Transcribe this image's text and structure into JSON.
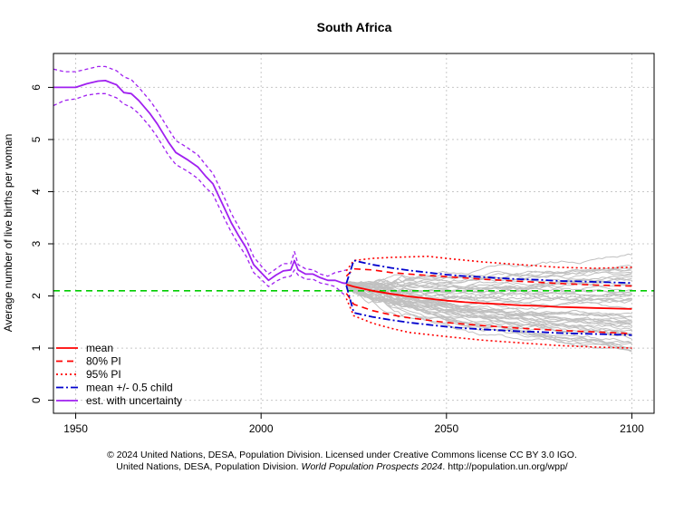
{
  "chart_data": {
    "type": "line",
    "title": "South Africa",
    "xlabel": "",
    "ylabel": "Average number of live births per woman",
    "xlim": [
      1944,
      2106
    ],
    "ylim": [
      -0.25,
      6.65
    ],
    "x_ticks": [
      1950,
      2000,
      2050,
      2100
    ],
    "y_ticks": [
      0,
      1,
      2,
      3,
      4,
      5,
      6
    ],
    "grid": true,
    "legend_position": "bottom-left",
    "legend": [
      {
        "label": "mean",
        "color": "#ff0000",
        "dash": "solid"
      },
      {
        "label": "80% PI",
        "color": "#ff0000",
        "dash": "dashed"
      },
      {
        "label": "95% PI",
        "color": "#ff0000",
        "dash": "dotted"
      },
      {
        "label": "mean +/- 0.5 child",
        "color": "#0000cd",
        "dash": "dotdash"
      },
      {
        "label": "est. with uncertainty",
        "color": "#a020f0",
        "dash": "solid"
      }
    ],
    "replacement_level": {
      "y": 2.1,
      "color": "#00cd00",
      "dash": "dashed"
    },
    "series": [
      {
        "key": "estimate",
        "x": [
          1944,
          1947,
          1950,
          1953,
          1956,
          1958,
          1961,
          1963,
          1965,
          1967,
          1970,
          1972,
          1975,
          1977,
          1980,
          1983,
          1985,
          1987,
          1990,
          1992,
          1994,
          1996,
          1998,
          2000,
          2002,
          2004,
          2006,
          2008,
          2009,
          2010,
          2012,
          2014,
          2016,
          2018,
          2020,
          2022,
          2023
        ],
        "y": [
          6.0,
          6.0,
          6.0,
          6.07,
          6.12,
          6.13,
          6.05,
          5.9,
          5.88,
          5.75,
          5.5,
          5.3,
          4.95,
          4.75,
          4.62,
          4.47,
          4.3,
          4.15,
          3.7,
          3.4,
          3.15,
          2.92,
          2.6,
          2.45,
          2.3,
          2.4,
          2.48,
          2.5,
          2.68,
          2.5,
          2.42,
          2.42,
          2.35,
          2.3,
          2.3,
          2.25,
          2.24
        ],
        "color": "#a020f0"
      },
      {
        "key": "estimate_upper",
        "x": [
          1944,
          1947,
          1950,
          1953,
          1956,
          1958,
          1961,
          1963,
          1965,
          1967,
          1970,
          1972,
          1975,
          1977,
          1980,
          1983,
          1985,
          1987,
          1990,
          1992,
          1994,
          1996,
          1998,
          2000,
          2002,
          2004,
          2006,
          2008,
          2009,
          2010,
          2012,
          2014,
          2016,
          2018,
          2020,
          2022,
          2023
        ],
        "y": [
          6.35,
          6.3,
          6.3,
          6.35,
          6.4,
          6.4,
          6.32,
          6.2,
          6.15,
          6.0,
          5.75,
          5.55,
          5.2,
          4.98,
          4.85,
          4.7,
          4.52,
          4.35,
          3.9,
          3.58,
          3.32,
          3.08,
          2.75,
          2.58,
          2.42,
          2.52,
          2.62,
          2.62,
          2.85,
          2.6,
          2.52,
          2.5,
          2.42,
          2.38,
          2.45,
          2.48,
          2.5
        ],
        "color": "#a020f0"
      },
      {
        "key": "estimate_lower",
        "x": [
          1944,
          1947,
          1950,
          1953,
          1956,
          1958,
          1961,
          1963,
          1965,
          1967,
          1970,
          1972,
          1975,
          1977,
          1980,
          1983,
          1985,
          1987,
          1990,
          1992,
          1994,
          1996,
          1998,
          2000,
          2002,
          2004,
          2006,
          2008,
          2009,
          2010,
          2012,
          2014,
          2016,
          2018,
          2020,
          2022,
          2023
        ],
        "y": [
          5.65,
          5.75,
          5.78,
          5.85,
          5.88,
          5.88,
          5.8,
          5.68,
          5.62,
          5.5,
          5.25,
          5.05,
          4.7,
          4.52,
          4.4,
          4.25,
          4.08,
          3.95,
          3.5,
          3.22,
          2.98,
          2.76,
          2.45,
          2.32,
          2.18,
          2.28,
          2.35,
          2.38,
          2.5,
          2.4,
          2.32,
          2.32,
          2.25,
          2.22,
          2.18,
          2.05,
          2.0
        ]
      },
      {
        "key": "mean",
        "name": "mean",
        "x": [
          2023,
          2025,
          2030,
          2035,
          2040,
          2045,
          2050,
          2055,
          2060,
          2065,
          2070,
          2075,
          2080,
          2085,
          2090,
          2095,
          2100
        ],
        "y": [
          2.22,
          2.18,
          2.1,
          2.04,
          1.99,
          1.95,
          1.91,
          1.88,
          1.86,
          1.84,
          1.82,
          1.81,
          1.79,
          1.78,
          1.77,
          1.76,
          1.75
        ],
        "color": "#ff0000"
      },
      {
        "key": "pi80_upper",
        "name": "80% PI",
        "x": [
          2023,
          2025,
          2030,
          2035,
          2040,
          2050,
          2060,
          2070,
          2080,
          2090,
          2100
        ],
        "y": [
          2.38,
          2.52,
          2.5,
          2.45,
          2.42,
          2.37,
          2.32,
          2.28,
          2.24,
          2.21,
          2.19
        ],
        "color": "#ff0000"
      },
      {
        "key": "pi80_lower",
        "x": [
          2023,
          2025,
          2030,
          2035,
          2040,
          2050,
          2060,
          2070,
          2080,
          2090,
          2100
        ],
        "y": [
          2.05,
          1.84,
          1.72,
          1.64,
          1.58,
          1.49,
          1.43,
          1.38,
          1.34,
          1.31,
          1.28
        ],
        "color": "#ff0000"
      },
      {
        "key": "pi95_upper",
        "name": "95% PI",
        "x": [
          2023,
          2025,
          2030,
          2035,
          2040,
          2045,
          2050,
          2060,
          2070,
          2080,
          2090,
          2100
        ],
        "y": [
          2.48,
          2.68,
          2.72,
          2.74,
          2.75,
          2.76,
          2.72,
          2.65,
          2.6,
          2.55,
          2.53,
          2.55
        ],
        "color": "#ff0000"
      },
      {
        "key": "pi95_lower",
        "x": [
          2023,
          2025,
          2030,
          2035,
          2040,
          2050,
          2060,
          2070,
          2080,
          2090,
          2100
        ],
        "y": [
          1.95,
          1.62,
          1.48,
          1.38,
          1.3,
          1.22,
          1.15,
          1.1,
          1.05,
          1.02,
          1.0
        ],
        "color": "#ff0000"
      },
      {
        "key": "half_child_upper",
        "name": "mean +/- 0.5 child",
        "x": [
          2023,
          2025,
          2030,
          2035,
          2040,
          2045,
          2050,
          2055,
          2060,
          2065,
          2070,
          2075,
          2080,
          2085,
          2090,
          2095,
          2100
        ],
        "y": [
          2.24,
          2.68,
          2.6,
          2.54,
          2.49,
          2.45,
          2.41,
          2.38,
          2.36,
          2.34,
          2.32,
          2.31,
          2.29,
          2.28,
          2.27,
          2.26,
          2.25
        ],
        "color": "#0000cd"
      },
      {
        "key": "half_child_lower",
        "x": [
          2023,
          2025,
          2030,
          2035,
          2040,
          2045,
          2050,
          2055,
          2060,
          2065,
          2070,
          2075,
          2080,
          2085,
          2090,
          2095,
          2100
        ],
        "y": [
          2.2,
          1.68,
          1.6,
          1.54,
          1.49,
          1.45,
          1.41,
          1.38,
          1.36,
          1.34,
          1.32,
          1.31,
          1.29,
          1.28,
          1.27,
          1.26,
          1.25
        ],
        "color": "#0000cd"
      }
    ]
  },
  "credit": {
    "line1": "© 2024 United Nations, DESA, Population Division. Licensed under Creative Commons license CC BY 3.0 IGO.",
    "line2_prefix": "United Nations, DESA, Population Division. ",
    "line2_italic": "World Population Prospects 2024",
    "line2_suffix": ". http://population.un.org/wpp/"
  }
}
